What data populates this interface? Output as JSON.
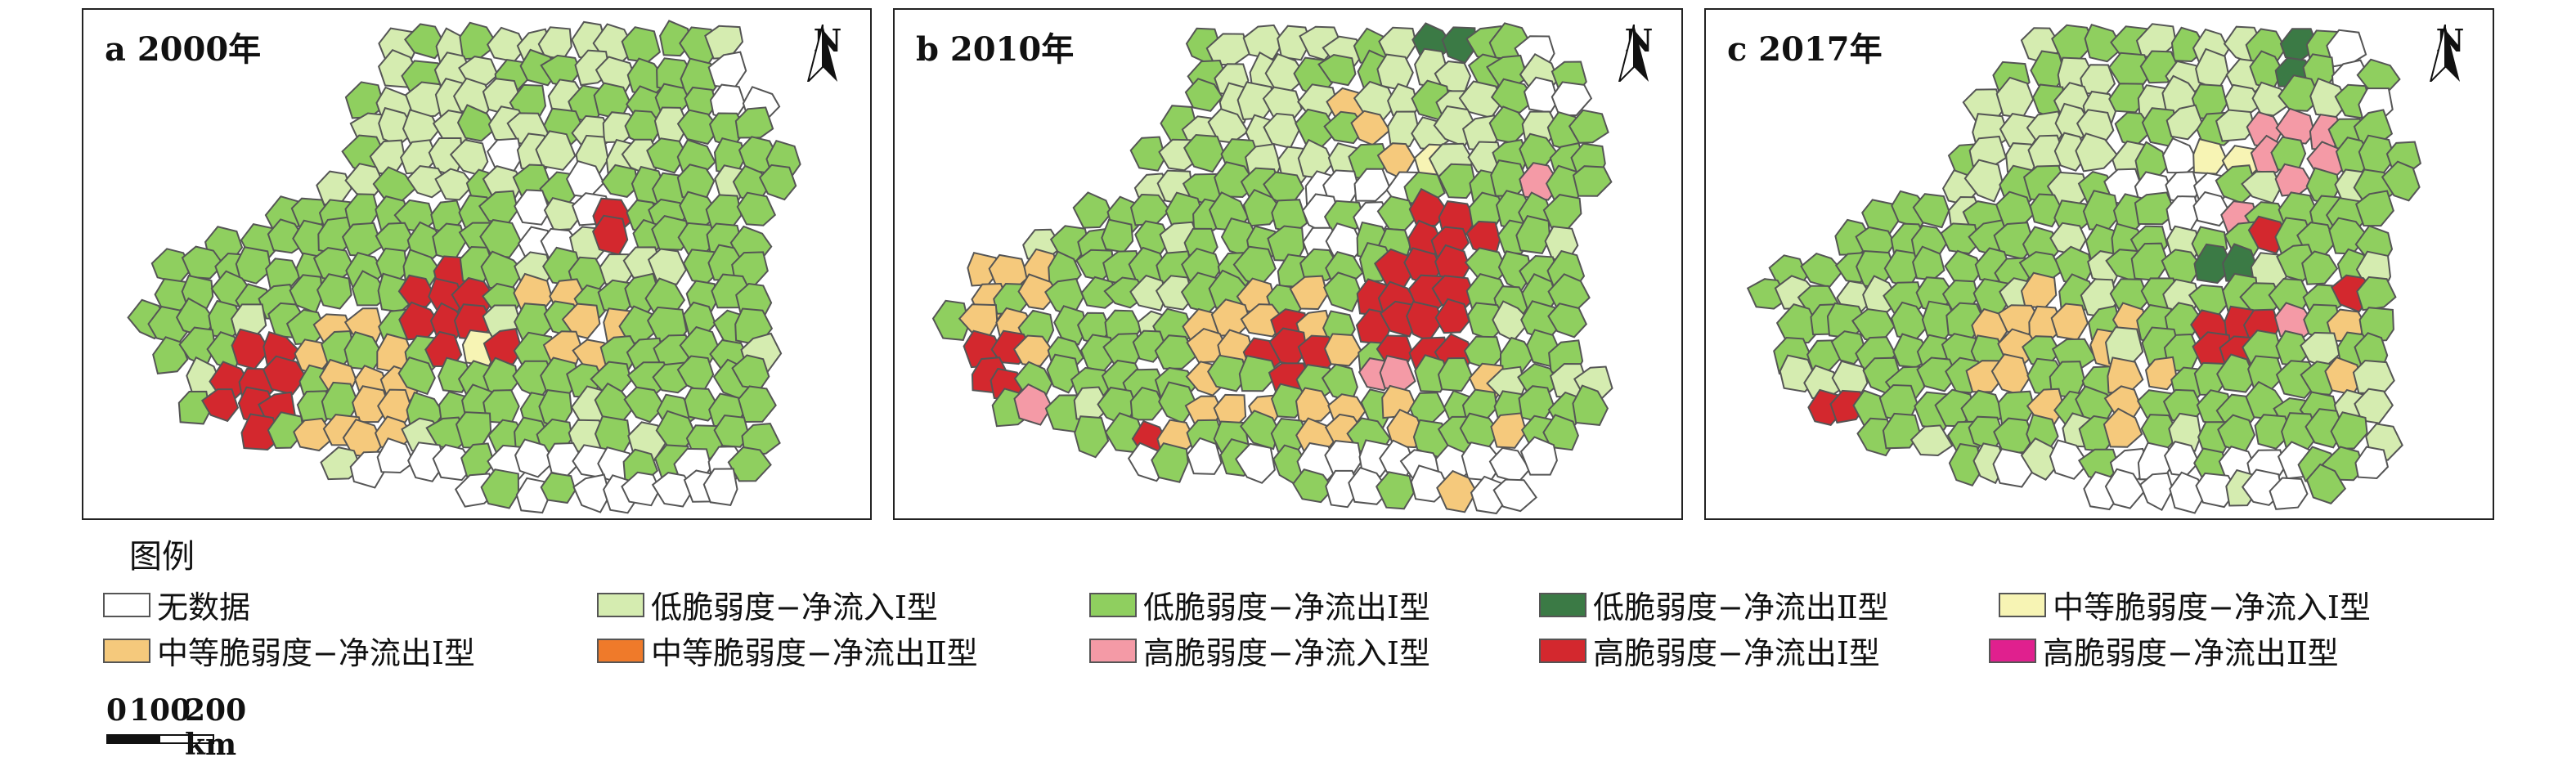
{
  "colors": {
    "no_data": "#ffffff",
    "low_in_1": "#d5ecb0",
    "low_out_1": "#8fcf5f",
    "low_out_2": "#3b7a45",
    "mid_in_1": "#f7f4b4",
    "mid_out_1": "#f5c97c",
    "mid_out_2": "#ef7a2a",
    "high_in_1": "#f49aa6",
    "high_out_1": "#d3282e",
    "high_out_2": "#e0208e",
    "border": "#555555"
  },
  "panels": [
    {
      "title": "a 2000年",
      "north": "N",
      "theme": "y2000"
    },
    {
      "title": "b 2010年",
      "north": "N",
      "theme": "y2010"
    },
    {
      "title": "c 2017年",
      "north": "N",
      "theme": "y2017"
    }
  ],
  "legend": {
    "title": "图例",
    "items": [
      {
        "label": "无数据",
        "color_key": "no_data"
      },
      {
        "label": "低脆弱度−净流入Ⅰ型",
        "color_key": "low_in_1"
      },
      {
        "label": "低脆弱度−净流出Ⅰ型",
        "color_key": "low_out_1"
      },
      {
        "label": "低脆弱度−净流出Ⅱ型",
        "color_key": "low_out_2"
      },
      {
        "label": "中等脆弱度−净流入Ⅰ型",
        "color_key": "mid_in_1"
      },
      {
        "label": "中等脆弱度−净流出Ⅰ型",
        "color_key": "mid_out_1"
      },
      {
        "label": "中等脆弱度−净流出Ⅱ型",
        "color_key": "mid_out_2"
      },
      {
        "label": "高脆弱度−净流入Ⅰ型",
        "color_key": "high_in_1"
      },
      {
        "label": "高脆弱度−净流出Ⅰ型",
        "color_key": "high_out_1"
      },
      {
        "label": "高脆弱度−净流出Ⅱ型",
        "color_key": "high_out_2"
      }
    ]
  },
  "scale": {
    "labels": [
      "0",
      "100",
      "200 km"
    ]
  }
}
